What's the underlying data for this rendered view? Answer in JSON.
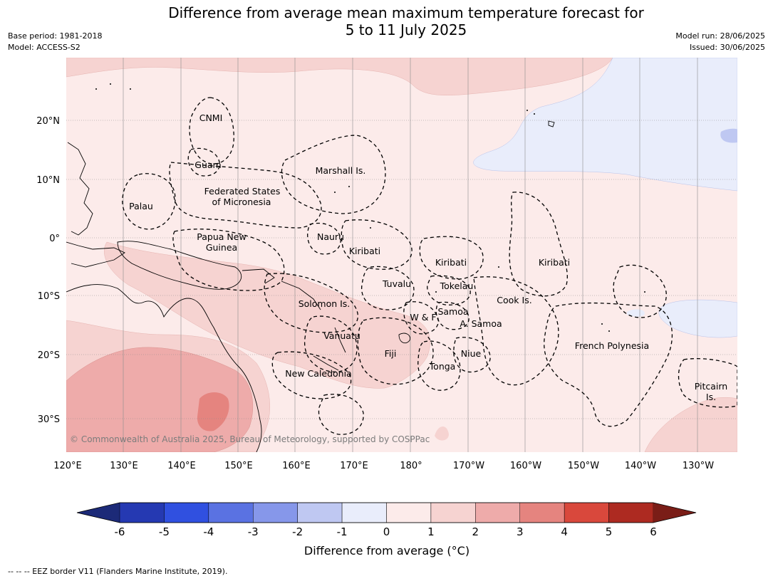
{
  "title": {
    "line1": "Difference from average mean maximum temperature forecast for",
    "line2": "5 to 11 July 2025"
  },
  "meta_left": {
    "base_period": "Base period: 1981-2018",
    "model": "Model: ACCESS-S2"
  },
  "meta_right": {
    "model_run": "Model run: 28/06/2025",
    "issued": "Issued: 30/06/2025"
  },
  "map": {
    "lon_labels": [
      "120°E",
      "130°E",
      "140°E",
      "150°E",
      "160°E",
      "170°E",
      "180°",
      "170°W",
      "160°W",
      "150°W",
      "140°W",
      "130°W"
    ],
    "lat_labels": [
      "20°N",
      "10°N",
      "0°",
      "10°S",
      "20°S",
      "30°S"
    ],
    "regions": {
      "cnmi": "CNMI",
      "guam": "Guam",
      "marshall": "Marshall Is.",
      "fsm_line1": "Federated States",
      "fsm_line2": "of Micronesia",
      "palau": "Palau",
      "png_line1": "Papua New",
      "png_line2": "Guinea",
      "nauru": "Nauru",
      "kiribati_west": "Kiribati",
      "kiribati_central": "Kiribati",
      "kiribati_east": "Kiribati",
      "tuvalu": "Tuvalu",
      "tokelau": "Tokelau",
      "cook": "Cook Is.",
      "solomon": "Solomon Is.",
      "wf": "W & F",
      "samoa": "Samoa",
      "asamoa": "A. Samoa",
      "vanuatu": "Vanuatu",
      "fiji": "Fiji",
      "niue": "Niue",
      "tonga": "Tonga",
      "new_caledonia": "New Caledonia",
      "french_polynesia": "French Polynesia",
      "pitcairn_line1": "Pitcairn",
      "pitcairn_line2": "Is."
    },
    "copyright": "© Commonwealth of Australia 2025, Bureau of Meteorology, supported by COSPPac"
  },
  "colorbar": {
    "ticks": [
      "-6",
      "-5",
      "-4",
      "-3",
      "-2",
      "-1",
      "0",
      "1",
      "2",
      "3",
      "4",
      "5",
      "6"
    ],
    "colors": [
      "#2539b2",
      "#3050e0",
      "#5a72e2",
      "#8697ea",
      "#bfc8f2",
      "#e9edfb",
      "#fcebea",
      "#f6d3d1",
      "#eeabaa",
      "#e5847f",
      "#d9483c",
      "#ad2a21"
    ],
    "under_color": "#1c2a78",
    "over_color": "#7a1d17",
    "label": "Difference from average (°C)"
  },
  "footnote": "--  --  -- EEZ border V11 (Flanders Marine Institute, 2019)."
}
